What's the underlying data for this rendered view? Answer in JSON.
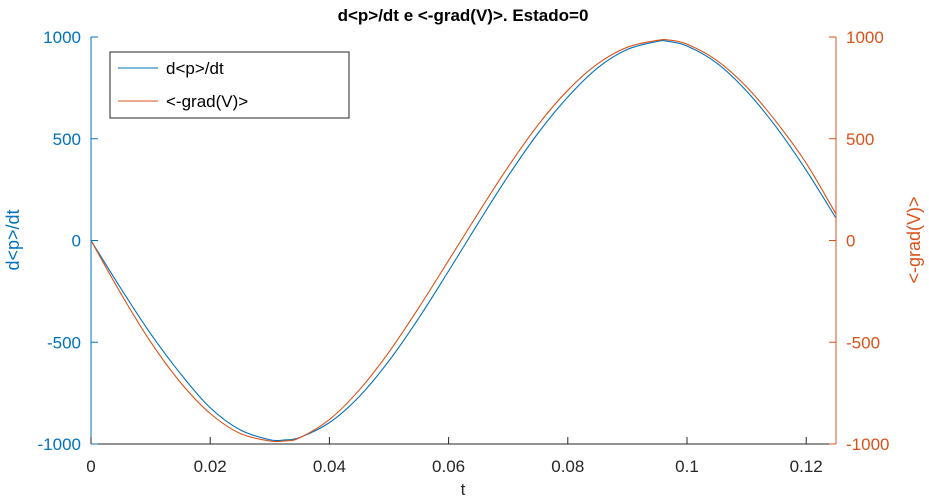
{
  "chart_data": {
    "type": "line",
    "title": "d<p>/dt e <-grad(V)>. Estado=0",
    "xlabel": "t",
    "ylabel_left": "d<p>/dt",
    "ylabel_right": "<-grad(V)>",
    "xlim": [
      0,
      0.125
    ],
    "ylim_left": [
      -1000,
      1000
    ],
    "ylim_right": [
      -1000,
      1000
    ],
    "x_ticks": [
      0,
      0.02,
      0.04,
      0.06,
      0.08,
      0.1,
      0.12
    ],
    "x_tick_labels": [
      "0",
      "0.02",
      "0.04",
      "0.06",
      "0.08",
      "0.1",
      "0.12"
    ],
    "y_ticks_left": [
      -1000,
      -500,
      0,
      500,
      1000
    ],
    "y_tick_labels_left": [
      "-1000",
      "-500",
      "0",
      "500",
      "1000"
    ],
    "y_ticks_right": [
      -1000,
      -500,
      0,
      500,
      1000
    ],
    "y_tick_labels_right": [
      "-1000",
      "-500",
      "0",
      "500",
      "1000"
    ],
    "grid": false,
    "legend_position": "top-left",
    "series": [
      {
        "name": "d<p>/dt",
        "axis": "left",
        "color": "#0072BD",
        "x": [
          0,
          0.005,
          0.01,
          0.015,
          0.02,
          0.025,
          0.03,
          0.0325,
          0.035,
          0.04,
          0.045,
          0.05,
          0.055,
          0.06,
          0.065,
          0.07,
          0.075,
          0.08,
          0.085,
          0.09,
          0.095,
          0.0965,
          0.1,
          0.105,
          0.11,
          0.115,
          0.12,
          0.125
        ],
        "y": [
          0,
          -235,
          -458,
          -654,
          -822,
          -930,
          -979,
          -980,
          -968,
          -895,
          -767,
          -591,
          -381,
          -150,
          87,
          317,
          527,
          705,
          848,
          939,
          978,
          980,
          956,
          872,
          734,
          556,
          345,
          110
        ]
      },
      {
        "name": "<-grad(V)>",
        "axis": "right",
        "color": "#D95319",
        "x": [
          0,
          0.005,
          0.01,
          0.015,
          0.02,
          0.025,
          0.03,
          0.0325,
          0.035,
          0.04,
          0.045,
          0.05,
          0.055,
          0.06,
          0.065,
          0.07,
          0.075,
          0.08,
          0.085,
          0.09,
          0.095,
          0.097,
          0.1,
          0.105,
          0.11,
          0.115,
          0.12,
          0.125
        ],
        "y": [
          0,
          -260,
          -498,
          -697,
          -850,
          -948,
          -985,
          -985,
          -970,
          -880,
          -735,
          -548,
          -330,
          -98,
          136,
          362,
          568,
          738,
          868,
          950,
          983,
          985,
          965,
          885,
          755,
          582,
          380,
          130
        ]
      }
    ]
  }
}
